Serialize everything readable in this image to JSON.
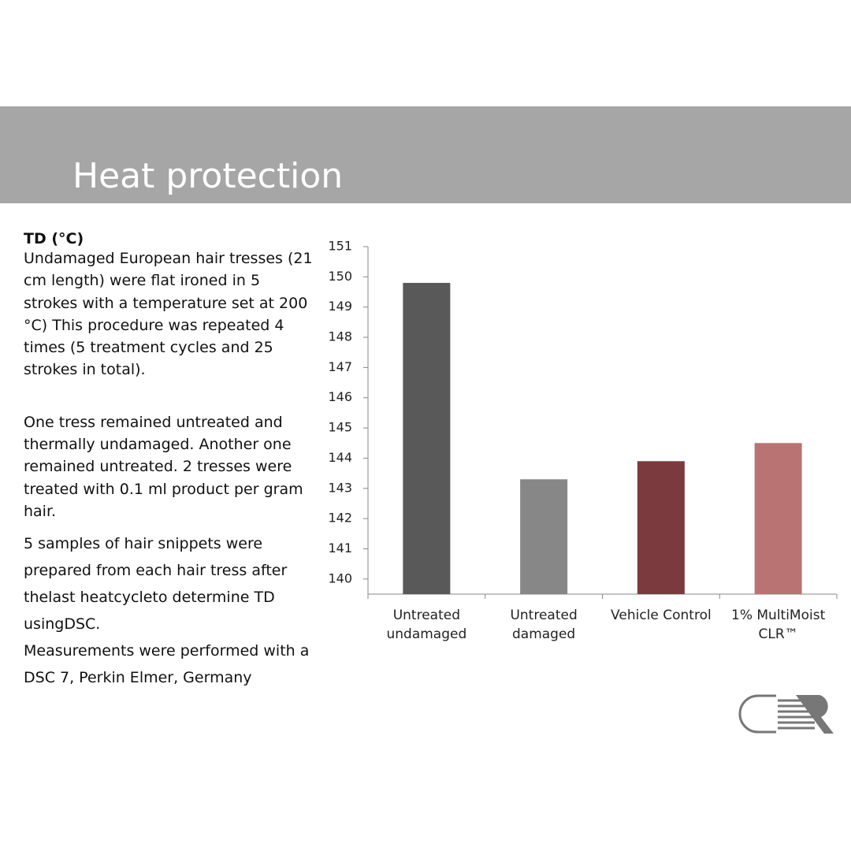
{
  "header": {
    "title": "Heat protection"
  },
  "text": {
    "heading": "TD (°C)",
    "paragraphs": [
      "Undamaged European hair tresses (21 cm length) were flat ironed in 5 strokes with a temperature set at 200 °C) This procedure was repeated 4 times (5 treatment cycles and 25 strokes in total).",
      "One tress remained untreated and thermally undamaged. Another one remained untreated. 2 tresses were treated with 0.1 ml product per gram hair.",
      "5 samples of hair snippets were prepared from each hair tress after thelast heatcycleto determine TD usingDSC.",
      "Measurements were performed with a DSC 7, Perkin Elmer, Germany"
    ]
  },
  "chart_data": {
    "type": "bar",
    "categories": [
      "Untreated undamaged",
      "Untreated damaged",
      "Vehicle Control",
      "1% MultiMoist CLR™"
    ],
    "values": [
      149.8,
      143.3,
      143.9,
      144.5
    ],
    "colors": [
      "#595959",
      "#878787",
      "#7b3b3e",
      "#b87372"
    ],
    "ylim": [
      139.5,
      151
    ],
    "yticks": [
      140,
      141,
      142,
      143,
      144,
      145,
      146,
      147,
      148,
      149,
      150,
      151
    ],
    "grid": false
  }
}
